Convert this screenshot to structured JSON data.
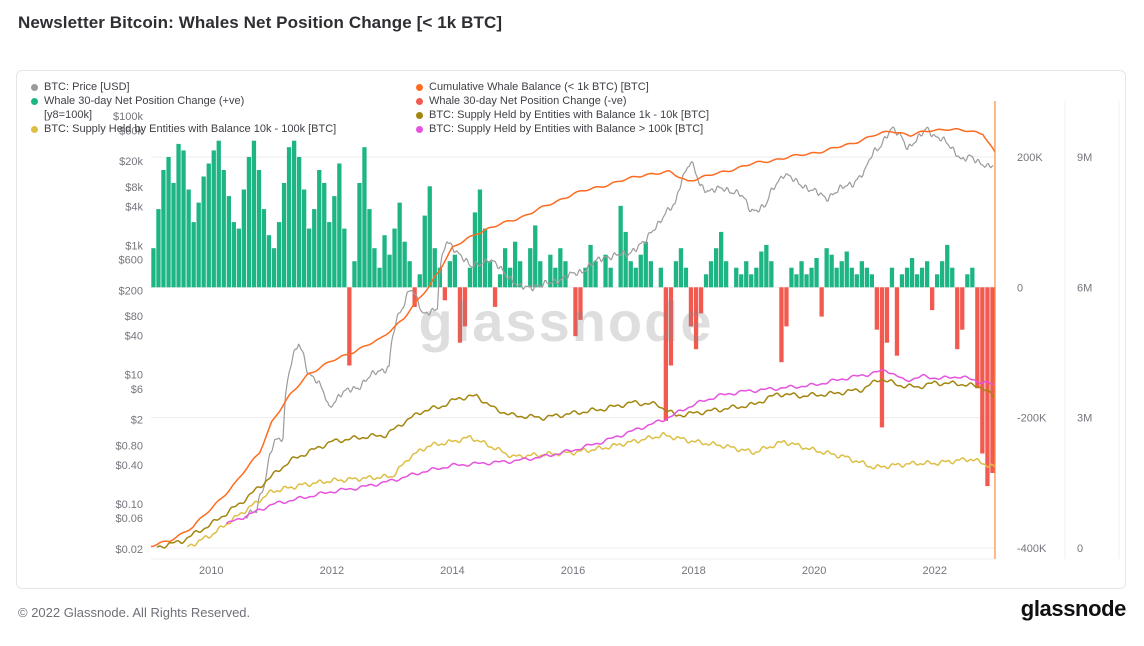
{
  "page": {
    "title": "Newsletter Bitcoin: Whales Net Position Change [< 1k BTC]",
    "watermark": "glassnode",
    "footer_copyright": "© 2022 Glassnode. All Rights Reserved.",
    "footer_brand": "glassnode"
  },
  "legend": {
    "columns": [
      {
        "items": [
          {
            "type": "item",
            "label": "BTC: Price [USD]",
            "color": "#9b9b9b"
          },
          {
            "type": "item",
            "label": "Whale 30-day Net Position Change (+ve)",
            "color": "#1eb584"
          },
          {
            "type": "sub",
            "label": "[y8=100k]"
          },
          {
            "type": "item",
            "label": "BTC: Supply Held by Entities with Balance 10k - 100k [BTC]",
            "color": "#ddbf45"
          }
        ]
      },
      {
        "items": [
          {
            "type": "item",
            "label": "Cumulative Whale Balance (< 1k BTC) [BTC]",
            "color": "#fd6b21"
          },
          {
            "type": "item",
            "label": "Whale 30-day Net Position Change (-ve)",
            "color": "#f2594f"
          },
          {
            "type": "item",
            "label": "BTC: Supply Held by Entities with Balance 1k - 10k [BTC]",
            "color": "#a3860e"
          },
          {
            "type": "item",
            "label": "BTC: Supply Held by Entities with Balance > 100k [BTC]",
            "color": "#e653de"
          }
        ]
      }
    ]
  },
  "chart_data": {
    "type": "composite",
    "x_range": [
      2009,
      2023
    ],
    "x_ticks": [
      "2010",
      "2012",
      "2014",
      "2016",
      "2018",
      "2020",
      "2022"
    ],
    "grid": "horizontal-major-only",
    "legend_position": "top",
    "axes": {
      "price_left": {
        "scale": "log",
        "unit": "USD",
        "ticks": [
          "$100k",
          "$60k",
          "$20k",
          "$8k",
          "$4k",
          "$1k",
          "$600",
          "$200",
          "$80",
          "$40",
          "$10",
          "$6",
          "$2",
          "$0.80",
          "$0.40",
          "$0.10",
          "$0.06",
          "$0.02"
        ],
        "tick_values": [
          100000,
          60000,
          20000,
          8000,
          4000,
          1000,
          600,
          200,
          80,
          40,
          10,
          6,
          2,
          0.8,
          0.4,
          0.1,
          0.06,
          0.02
        ]
      },
      "net_change_right": {
        "scale": "linear",
        "unit": "BTC",
        "ticks": [
          "200K",
          "0",
          "-200K",
          "-400K"
        ],
        "tick_values": [
          200000,
          0,
          -200000,
          -400000
        ]
      },
      "supply_right": {
        "scale": "linear",
        "unit": "BTC",
        "ticks": [
          "9M",
          "6M",
          "3M",
          "0"
        ],
        "tick_values": [
          9000000,
          6000000,
          3000000,
          0
        ]
      }
    },
    "series": [
      {
        "key": "net-position-change",
        "name": "Whale 30-day Net Position Change [BTC]",
        "type": "bar",
        "axis": "net_change_right",
        "unit": "thousand BTC (approx., read from chart)",
        "positive_color": "#1eb584",
        "negative_color": "#f2594f",
        "start_year": 2009.0,
        "step_years": 0.08333,
        "values_kbtc": [
          60,
          120,
          180,
          200,
          160,
          220,
          210,
          150,
          100,
          130,
          170,
          190,
          210,
          225,
          180,
          140,
          100,
          90,
          150,
          200,
          225,
          180,
          120,
          80,
          60,
          100,
          160,
          215,
          225,
          200,
          150,
          90,
          120,
          180,
          160,
          100,
          140,
          190,
          90,
          -120,
          40,
          160,
          215,
          120,
          60,
          30,
          80,
          50,
          90,
          130,
          70,
          40,
          -30,
          20,
          110,
          155,
          60,
          30,
          -20,
          40,
          50,
          -85,
          -60,
          30,
          115,
          150,
          90,
          40,
          -30,
          20,
          60,
          30,
          70,
          40,
          0,
          60,
          95,
          40,
          0,
          50,
          30,
          60,
          40,
          0,
          -75,
          -50,
          30,
          65,
          40,
          0,
          50,
          30,
          0,
          125,
          85,
          40,
          30,
          50,
          70,
          40,
          0,
          30,
          -205,
          -120,
          40,
          60,
          30,
          -60,
          -95,
          -40,
          20,
          40,
          60,
          85,
          40,
          0,
          30,
          20,
          40,
          20,
          30,
          55,
          65,
          40,
          0,
          -115,
          -60,
          30,
          20,
          40,
          20,
          30,
          45,
          -45,
          60,
          50,
          30,
          40,
          55,
          30,
          20,
          40,
          30,
          20,
          -65,
          -215,
          -85,
          30,
          -105,
          20,
          30,
          45,
          20,
          30,
          40,
          -35,
          20,
          40,
          65,
          30,
          -95,
          -65,
          20,
          30,
          -155,
          -255,
          -305,
          -285
        ]
      },
      {
        "key": "btc-price",
        "name": "BTC: Price [USD]",
        "type": "line",
        "axis": "price_left",
        "unit": "USD",
        "color": "#9b9b9b",
        "points": [
          [
            2010.55,
            0.06
          ],
          [
            2010.75,
            0.08
          ],
          [
            2010.9,
            0.22
          ],
          [
            2011.05,
            0.9
          ],
          [
            2011.2,
            1.1
          ],
          [
            2011.45,
            29
          ],
          [
            2011.6,
            11
          ],
          [
            2011.75,
            8
          ],
          [
            2011.95,
            3
          ],
          [
            2012.15,
            5
          ],
          [
            2012.45,
            6.5
          ],
          [
            2012.75,
            11
          ],
          [
            2012.95,
            13
          ],
          [
            2013.2,
            120
          ],
          [
            2013.3,
            230
          ],
          [
            2013.5,
            80
          ],
          [
            2013.75,
            110
          ],
          [
            2013.9,
            1100
          ],
          [
            2014.05,
            850
          ],
          [
            2014.3,
            450
          ],
          [
            2014.6,
            600
          ],
          [
            2014.9,
            350
          ],
          [
            2015.1,
            220
          ],
          [
            2015.5,
            240
          ],
          [
            2015.85,
            310
          ],
          [
            2016.2,
            420
          ],
          [
            2016.5,
            650
          ],
          [
            2016.9,
            730
          ],
          [
            2017.2,
            1100
          ],
          [
            2017.45,
            2400
          ],
          [
            2017.7,
            4300
          ],
          [
            2017.95,
            19000
          ],
          [
            2018.1,
            8500
          ],
          [
            2018.25,
            7000
          ],
          [
            2018.5,
            7500
          ],
          [
            2018.75,
            6400
          ],
          [
            2018.95,
            3400
          ],
          [
            2019.2,
            4000
          ],
          [
            2019.5,
            12800
          ],
          [
            2019.7,
            9500
          ],
          [
            2019.95,
            7200
          ],
          [
            2020.2,
            5300
          ],
          [
            2020.4,
            7100
          ],
          [
            2020.65,
            9200
          ],
          [
            2020.85,
            13800
          ],
          [
            2021.0,
            29000
          ],
          [
            2021.1,
            35000
          ],
          [
            2021.3,
            62000
          ],
          [
            2021.45,
            49000
          ],
          [
            2021.55,
            31500
          ],
          [
            2021.7,
            40000
          ],
          [
            2021.87,
            67000
          ],
          [
            2022.0,
            47000
          ],
          [
            2022.2,
            39000
          ],
          [
            2022.45,
            20000
          ],
          [
            2022.6,
            23500
          ],
          [
            2022.75,
            19500
          ],
          [
            2022.87,
            16000
          ],
          [
            2022.98,
            16800
          ]
        ]
      },
      {
        "key": "cumulative-whale-balance",
        "name": "Cumulative Whale Balance (< 1k BTC) [BTC]",
        "type": "line",
        "axis": "supply_right",
        "unit": "million BTC",
        "color": "#fd6b21",
        "points": [
          [
            2009.0,
            0.05
          ],
          [
            2009.3,
            0.15
          ],
          [
            2009.7,
            0.5
          ],
          [
            2010.0,
            0.9
          ],
          [
            2010.4,
            1.5
          ],
          [
            2010.8,
            2.2
          ],
          [
            2011.0,
            2.9
          ],
          [
            2011.3,
            3.5
          ],
          [
            2011.6,
            4.0
          ],
          [
            2012.0,
            4.3
          ],
          [
            2012.4,
            4.55
          ],
          [
            2012.8,
            4.8
          ],
          [
            2013.2,
            5.3
          ],
          [
            2013.6,
            6.0
          ],
          [
            2014.0,
            6.9
          ],
          [
            2014.4,
            7.25
          ],
          [
            2014.8,
            7.45
          ],
          [
            2015.2,
            7.65
          ],
          [
            2015.6,
            7.9
          ],
          [
            2016.0,
            8.15
          ],
          [
            2016.4,
            8.3
          ],
          [
            2016.8,
            8.45
          ],
          [
            2017.2,
            8.6
          ],
          [
            2017.6,
            8.65
          ],
          [
            2017.9,
            8.45
          ],
          [
            2018.2,
            8.55
          ],
          [
            2018.6,
            8.7
          ],
          [
            2019.0,
            8.85
          ],
          [
            2019.4,
            8.95
          ],
          [
            2019.8,
            9.05
          ],
          [
            2020.2,
            9.15
          ],
          [
            2020.6,
            9.3
          ],
          [
            2021.0,
            9.5
          ],
          [
            2021.3,
            9.6
          ],
          [
            2021.6,
            9.5
          ],
          [
            2021.9,
            9.6
          ],
          [
            2022.2,
            9.65
          ],
          [
            2022.5,
            9.6
          ],
          [
            2022.8,
            9.55
          ],
          [
            2023.0,
            9.1
          ]
        ]
      },
      {
        "key": "supply-1k-10k",
        "name": "BTC: Supply Held by Entities with Balance 1k - 10k [BTC]",
        "type": "line",
        "axis": "supply_right",
        "unit": "million BTC",
        "color": "#a3860e",
        "points": [
          [
            2009.1,
            0.02
          ],
          [
            2009.5,
            0.15
          ],
          [
            2010.0,
            0.55
          ],
          [
            2010.5,
            1.05
          ],
          [
            2011.0,
            1.65
          ],
          [
            2011.3,
            2.0
          ],
          [
            2011.6,
            2.2
          ],
          [
            2012.0,
            2.45
          ],
          [
            2012.5,
            2.55
          ],
          [
            2012.9,
            2.6
          ],
          [
            2013.2,
            2.9
          ],
          [
            2013.5,
            3.15
          ],
          [
            2013.8,
            3.25
          ],
          [
            2014.1,
            3.45
          ],
          [
            2014.4,
            3.5
          ],
          [
            2014.7,
            3.2
          ],
          [
            2015.0,
            3.05
          ],
          [
            2015.5,
            3.0
          ],
          [
            2016.0,
            3.1
          ],
          [
            2016.5,
            3.2
          ],
          [
            2017.0,
            3.35
          ],
          [
            2017.4,
            3.3
          ],
          [
            2017.7,
            3.05
          ],
          [
            2018.0,
            3.1
          ],
          [
            2018.5,
            3.2
          ],
          [
            2019.0,
            3.3
          ],
          [
            2019.4,
            3.55
          ],
          [
            2019.8,
            3.5
          ],
          [
            2020.3,
            3.55
          ],
          [
            2020.8,
            3.65
          ],
          [
            2021.1,
            3.9
          ],
          [
            2021.4,
            3.75
          ],
          [
            2021.7,
            3.7
          ],
          [
            2022.0,
            3.8
          ],
          [
            2022.4,
            3.78
          ],
          [
            2022.8,
            3.7
          ],
          [
            2023.0,
            3.45
          ]
        ]
      },
      {
        "key": "supply-10k-100k",
        "name": "BTC: Supply Held by Entities with Balance 10k - 100k [BTC]",
        "type": "line",
        "axis": "supply_right",
        "unit": "million BTC",
        "color": "#ddbf45",
        "points": [
          [
            2009.6,
            0.02
          ],
          [
            2010.0,
            0.3
          ],
          [
            2010.5,
            0.8
          ],
          [
            2011.0,
            1.3
          ],
          [
            2011.5,
            1.45
          ],
          [
            2012.0,
            1.55
          ],
          [
            2012.5,
            1.6
          ],
          [
            2013.0,
            1.65
          ],
          [
            2013.3,
            2.1
          ],
          [
            2013.6,
            2.35
          ],
          [
            2014.0,
            2.45
          ],
          [
            2014.3,
            2.55
          ],
          [
            2014.7,
            2.3
          ],
          [
            2015.0,
            2.1
          ],
          [
            2015.5,
            2.15
          ],
          [
            2016.0,
            2.2
          ],
          [
            2016.5,
            2.3
          ],
          [
            2017.0,
            2.45
          ],
          [
            2017.5,
            2.6
          ],
          [
            2018.0,
            2.45
          ],
          [
            2018.5,
            2.35
          ],
          [
            2019.0,
            2.2
          ],
          [
            2019.5,
            2.45
          ],
          [
            2020.0,
            2.25
          ],
          [
            2020.5,
            2.1
          ],
          [
            2021.0,
            1.85
          ],
          [
            2021.3,
            1.9
          ],
          [
            2021.7,
            1.95
          ],
          [
            2022.0,
            1.95
          ],
          [
            2022.3,
            2.0
          ],
          [
            2022.6,
            2.05
          ],
          [
            2023.0,
            1.85
          ]
        ]
      },
      {
        "key": "supply-gt-100k",
        "name": "BTC: Supply Held by Entities with Balance > 100k [BTC]",
        "type": "line",
        "axis": "supply_right",
        "unit": "million BTC",
        "color": "#e653de",
        "points": [
          [
            2010.25,
            0.55
          ],
          [
            2010.6,
            0.75
          ],
          [
            2011.0,
            1.0
          ],
          [
            2011.5,
            1.15
          ],
          [
            2012.0,
            1.3
          ],
          [
            2012.5,
            1.4
          ],
          [
            2013.0,
            1.55
          ],
          [
            2013.5,
            1.75
          ],
          [
            2014.0,
            1.9
          ],
          [
            2014.5,
            1.95
          ],
          [
            2015.0,
            2.0
          ],
          [
            2015.5,
            2.1
          ],
          [
            2016.0,
            2.25
          ],
          [
            2016.5,
            2.45
          ],
          [
            2017.0,
            2.7
          ],
          [
            2017.5,
            2.95
          ],
          [
            2018.0,
            3.3
          ],
          [
            2018.4,
            3.5
          ],
          [
            2018.8,
            3.6
          ],
          [
            2019.2,
            3.65
          ],
          [
            2019.6,
            3.7
          ],
          [
            2020.0,
            3.75
          ],
          [
            2020.5,
            3.9
          ],
          [
            2020.9,
            4.0
          ],
          [
            2021.2,
            4.1
          ],
          [
            2021.5,
            3.85
          ],
          [
            2021.8,
            3.95
          ],
          [
            2022.1,
            3.9
          ],
          [
            2022.4,
            3.95
          ],
          [
            2022.7,
            3.85
          ],
          [
            2023.0,
            3.75
          ]
        ]
      }
    ]
  }
}
